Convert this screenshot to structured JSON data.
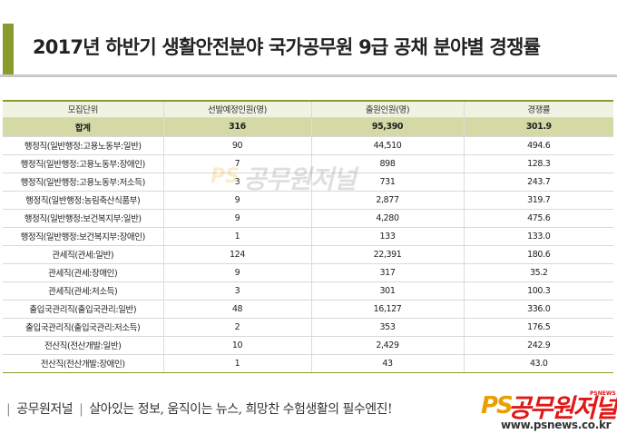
{
  "title": "2017년 하반기 생활안전분야 국가공무원 9급 공채 분야별 경쟁률",
  "table": {
    "headers": [
      "모집단위",
      "선발예정인원(명)",
      "출원인원(명)",
      "경쟁률"
    ],
    "total": {
      "unit": "합계",
      "planned": "316",
      "applicants": "95,390",
      "ratio": "301.9"
    },
    "rows": [
      {
        "unit": "행정직(일반행정:고용노동부:일반)",
        "planned": "90",
        "applicants": "44,510",
        "ratio": "494.6"
      },
      {
        "unit": "행정직(일반행정:고용노동부:장애인)",
        "planned": "7",
        "applicants": "898",
        "ratio": "128.3"
      },
      {
        "unit": "행정직(일반행정:고용노동부:저소득)",
        "planned": "3",
        "applicants": "731",
        "ratio": "243.7"
      },
      {
        "unit": "행정직(일반행정:농림축산식품부)",
        "planned": "9",
        "applicants": "2,877",
        "ratio": "319.7"
      },
      {
        "unit": "행정직(일반행정:보건복지부:일반)",
        "planned": "9",
        "applicants": "4,280",
        "ratio": "475.6"
      },
      {
        "unit": "행정직(일반행정:보건복지부:장애인)",
        "planned": "1",
        "applicants": "133",
        "ratio": "133.0"
      },
      {
        "unit": "관세직(관세:일반)",
        "planned": "124",
        "applicants": "22,391",
        "ratio": "180.6"
      },
      {
        "unit": "관세직(관세:장애인)",
        "planned": "9",
        "applicants": "317",
        "ratio": "35.2"
      },
      {
        "unit": "관세직(관세:저소득)",
        "planned": "3",
        "applicants": "301",
        "ratio": "100.3"
      },
      {
        "unit": "출입국관리직(출입국관리:일반)",
        "planned": "48",
        "applicants": "16,127",
        "ratio": "336.0"
      },
      {
        "unit": "출입국관리직(출입국관리:저소득)",
        "planned": "2",
        "applicants": "353",
        "ratio": "176.5"
      },
      {
        "unit": "전산직(전산개발:일반)",
        "planned": "10",
        "applicants": "2,429",
        "ratio": "242.9"
      },
      {
        "unit": "전산직(전산개발:장애인)",
        "planned": "1",
        "applicants": "43",
        "ratio": "43.0"
      }
    ]
  },
  "watermark": {
    "ps": "PS",
    "text": "공무원저널"
  },
  "footer": {
    "sep": "|",
    "brand": "공무원저널",
    "tagline": "살아있는 정보, 움직이는 뉴스, 희망찬 수험생활의 필수엔진!"
  },
  "logo": {
    "ps": "PS",
    "name": "공무원저널",
    "sub": "PSNEWS",
    "url": "www.psnews.co.kr"
  },
  "colors": {
    "accent": "#8a9a2c",
    "total_row": "#d4d9a6",
    "header_row": "#f0f2e2",
    "logo_red": "#e01818",
    "logo_orange": "#e8a000"
  }
}
